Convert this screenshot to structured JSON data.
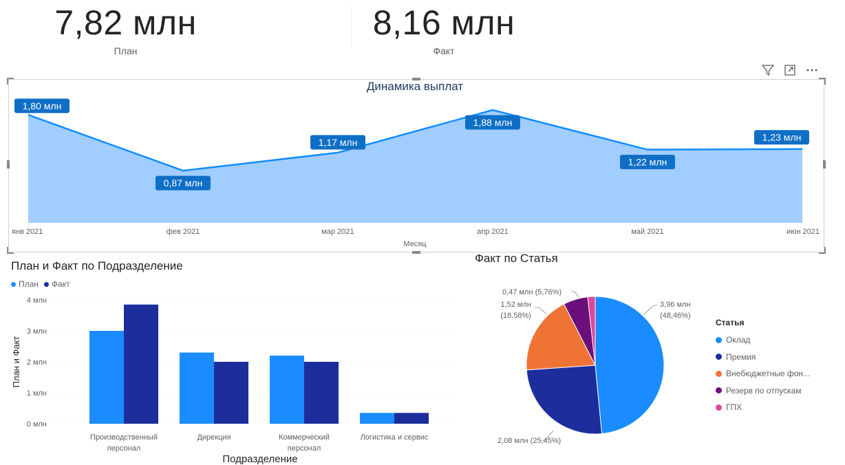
{
  "kpis": [
    {
      "value": "7,82 млн",
      "label": "План"
    },
    {
      "value": "8,16 млн",
      "label": "Факт"
    }
  ],
  "toolbar_icons": [
    "filter-icon",
    "focus-mode-icon",
    "more-options-icon"
  ],
  "colors": {
    "line": "#118dff",
    "area": "#a1cdff",
    "label_bg": "#0f6fc6",
    "plan": "#1a8cff",
    "fact": "#1c2e9c",
    "pie": [
      "#1a8cff",
      "#1c2e9c",
      "#ee7335",
      "#6b0f7a",
      "#e0469a"
    ]
  },
  "chart_data": [
    {
      "type": "area",
      "title": "Динамика выплат",
      "xlabel": "Месяц",
      "ylabel": "",
      "categories": [
        "янв 2021",
        "фев 2021",
        "мар 2021",
        "апр 2021",
        "май 2021",
        "июн 2021"
      ],
      "values": [
        1.8,
        0.87,
        1.17,
        1.88,
        1.22,
        1.23
      ],
      "data_labels": [
        "1,80 млн",
        "0,87 млн",
        "1,17 млн",
        "1,88 млн",
        "1,22 млн",
        "1,23 млн"
      ],
      "ylim": [
        0,
        2.2
      ]
    },
    {
      "type": "bar",
      "title": "План и Факт по Подразделение",
      "xlabel": "Подразделение",
      "ylabel": "План и Факт",
      "categories": [
        [
          "Производственный",
          "персонал"
        ],
        [
          "Дирекция"
        ],
        [
          "Коммерческий",
          "персонал"
        ],
        [
          "Логистика и сервис"
        ]
      ],
      "series": [
        {
          "name": "План",
          "values": [
            3.0,
            2.3,
            2.2,
            0.35
          ]
        },
        {
          "name": "Факт",
          "values": [
            3.85,
            2.0,
            2.0,
            0.35
          ]
        }
      ],
      "yticks": [
        "0 млн",
        "1 млн",
        "2 млн",
        "3 млн",
        "4 млн"
      ],
      "ylim": [
        0,
        4
      ],
      "legend": "top-left"
    },
    {
      "type": "pie",
      "title": "Факт по Статья",
      "legend_title": "Статья",
      "labels": [
        "Оклад",
        "Премия",
        "Внебюджетные фон...",
        "Резерв по отпускам",
        "ГПХ"
      ],
      "values": [
        48.46,
        25.45,
        18.58,
        5.76,
        1.75
      ],
      "data_labels": [
        [
          "3,96 млн",
          "(48,46%)"
        ],
        [
          "2,08 млн (25,45%)"
        ],
        [
          "1,52 млн",
          "(18,58%)"
        ],
        [
          "0,47 млн (5,76%)"
        ]
      ]
    }
  ]
}
